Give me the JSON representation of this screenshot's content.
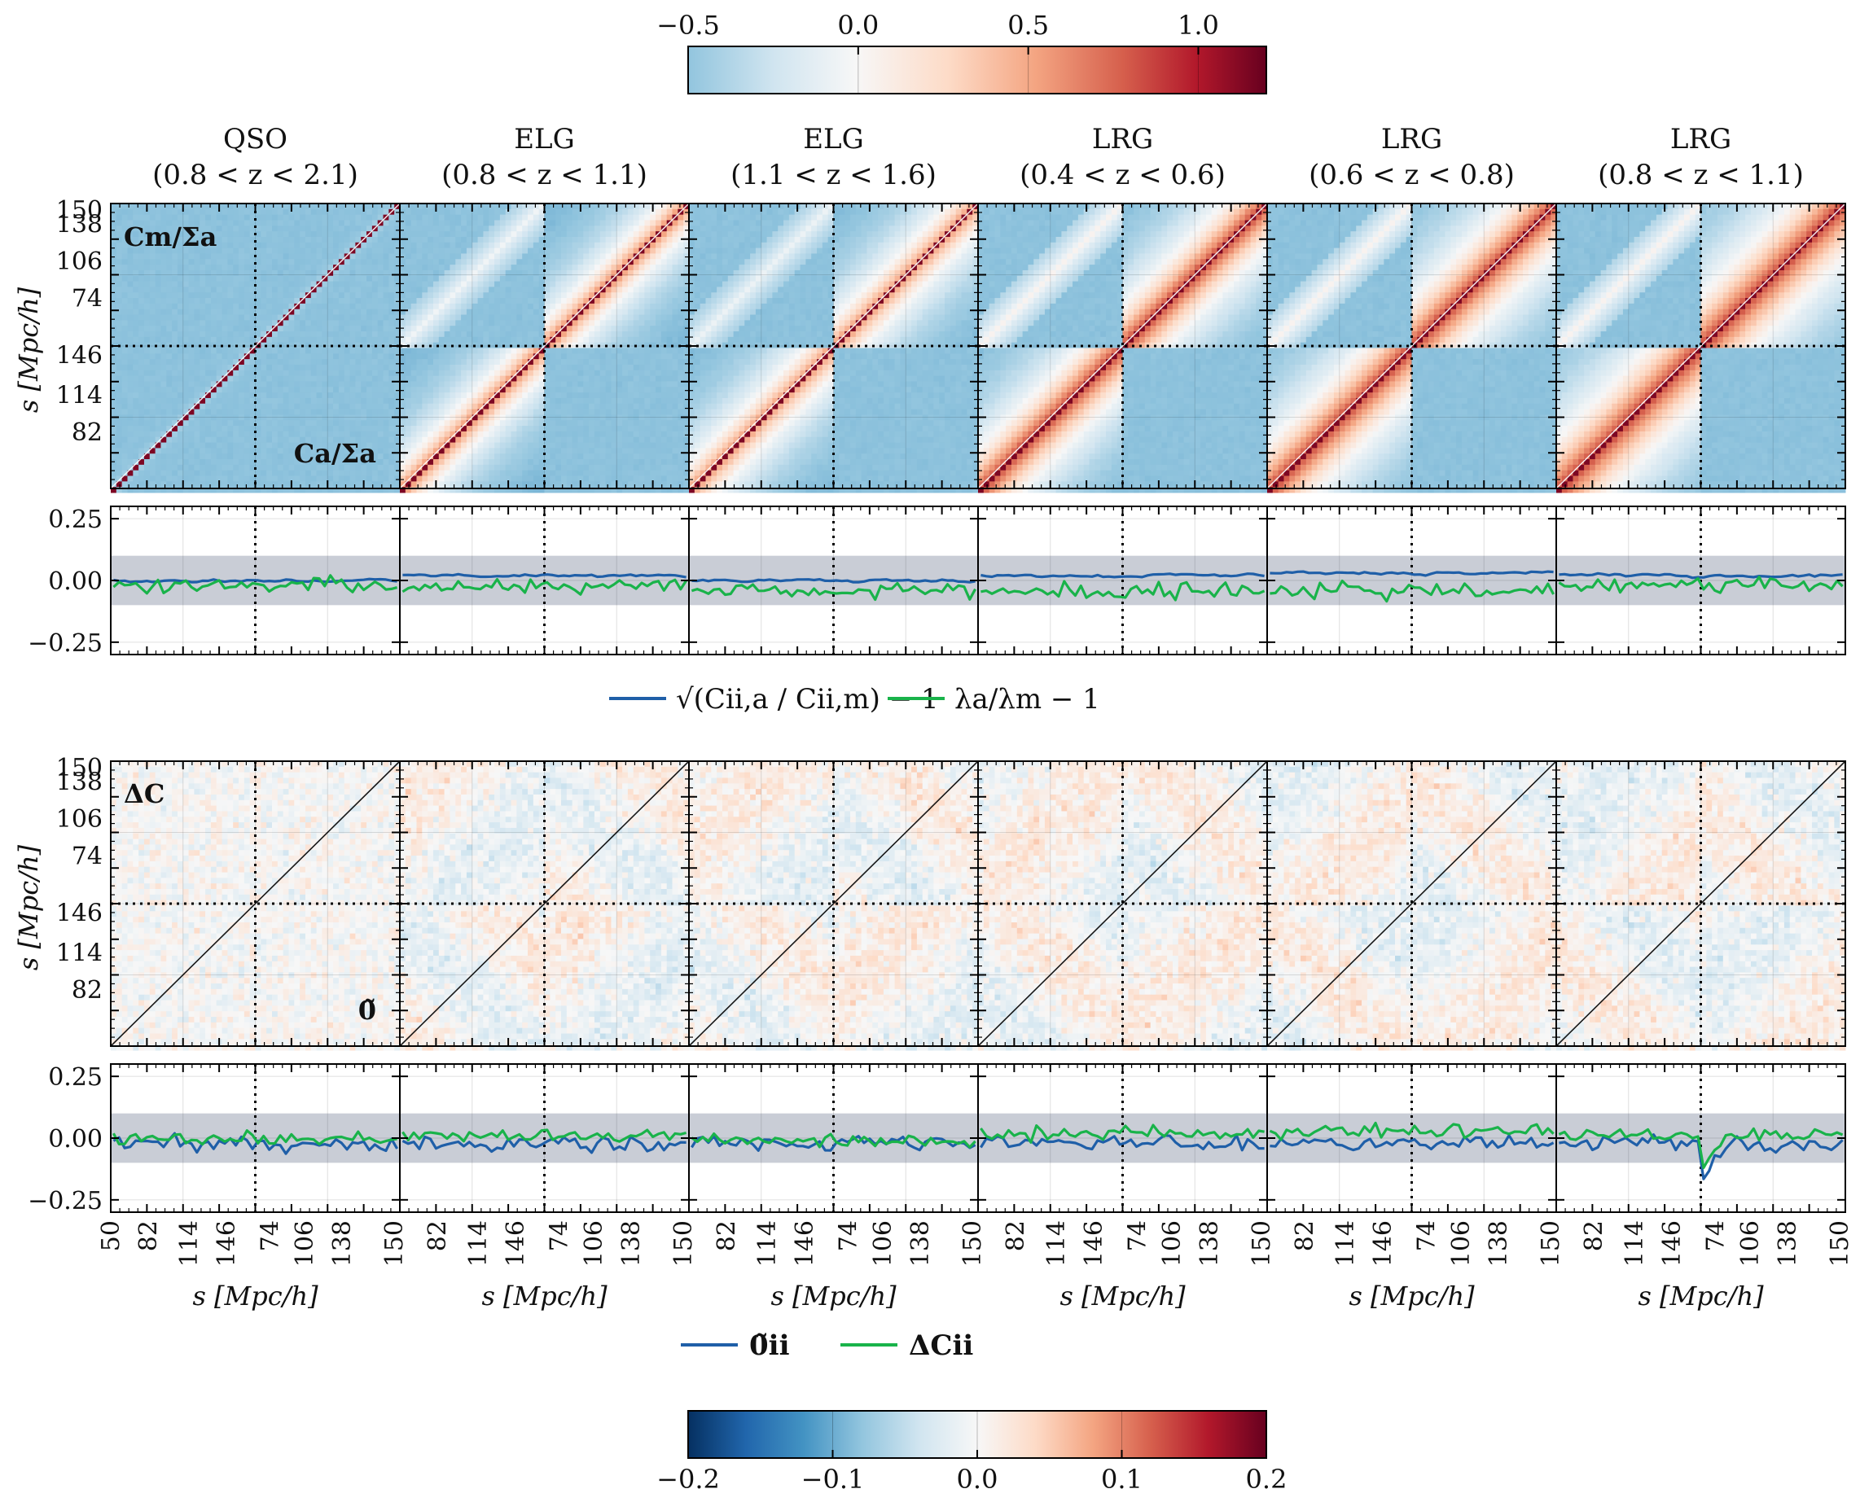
{
  "columns": [
    {
      "label": "QSO",
      "zrange": "(0.8 < z < 2.1)"
    },
    {
      "label": "ELG",
      "zrange": "(0.8 < z < 1.1)"
    },
    {
      "label": "ELG",
      "zrange": "(1.1 < z < 1.6)"
    },
    {
      "label": "LRG",
      "zrange": "(0.4 < z < 0.6)"
    },
    {
      "label": "LRG",
      "zrange": "(0.6 < z < 0.8)"
    },
    {
      "label": "LRG",
      "zrange": "(0.8 < z < 1.1)"
    }
  ],
  "colorbar_top": {
    "ticks": [
      "−0.5",
      "0.0",
      "0.5",
      "1.0"
    ],
    "range": [
      -0.5,
      1.2
    ],
    "colormap": "RdBu_r"
  },
  "colorbar_bottom": {
    "ticks": [
      "−0.2",
      "−0.1",
      "0.0",
      "0.1",
      "0.2"
    ],
    "range": [
      -0.2,
      0.2
    ],
    "colormap": "RdBu_r"
  },
  "axes": {
    "ylabel": "s [Mpc/h]",
    "xlabel": "s [Mpc/h]",
    "matrix_yticks": [
      "150",
      "138",
      "106",
      "74",
      "146",
      "114",
      "82"
    ],
    "matrix_xticks": [
      "50",
      "82",
      "114",
      "146",
      "74",
      "106",
      "138",
      "150"
    ],
    "diff_yticks": [
      "0.25",
      "0.00",
      "−0.25"
    ]
  },
  "panel_labels": {
    "top_upper": "Cm/Σa",
    "top_lower": "Ca/Σa",
    "bottom_upper": "ΔC",
    "bottom_lower": "0̃"
  },
  "legend_top": [
    {
      "label": "√(Cii,a / Cii,m) − 1",
      "color": "#1f5fa8"
    },
    {
      "label": "λa/λm − 1",
      "color": "#19b34a"
    }
  ],
  "legend_bottom": [
    {
      "label": "0̃ii",
      "color": "#1f5fa8"
    },
    {
      "label": "ΔCii",
      "color": "#19b34a"
    }
  ],
  "chart_data": {
    "type": "heatmap",
    "description_free": true,
    "correlation_strength": [
      0.25,
      0.8,
      0.75,
      0.95,
      0.95,
      0.95
    ],
    "diff_row1_ylim": [
      -0.3,
      0.3
    ],
    "diff_row2_ylim": [
      -0.3,
      0.3
    ],
    "shaded_band": [
      -0.1,
      0.1
    ],
    "diff_row1": {
      "blue_level": [
        0.0,
        0.02,
        0.0,
        0.02,
        0.03,
        0.02
      ],
      "green_level": [
        -0.02,
        -0.02,
        -0.04,
        -0.04,
        -0.04,
        -0.02
      ]
    },
    "diff_row2": {
      "blue_level": [
        -0.02,
        -0.02,
        -0.02,
        -0.02,
        -0.02,
        -0.02
      ],
      "green_level": [
        0.0,
        0.01,
        -0.01,
        0.02,
        0.03,
        0.02
      ]
    },
    "bins_per_block": 26
  }
}
